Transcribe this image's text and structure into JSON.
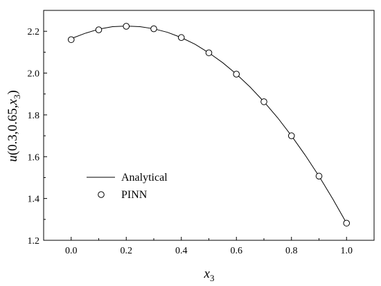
{
  "chart_data": {
    "type": "line",
    "title": "",
    "xlabel": {
      "base": "x",
      "sub": "3"
    },
    "ylabel": {
      "pre": "u",
      "mid": "(0.3,0.65,",
      "var": "x",
      "sub": "3",
      "post": ")"
    },
    "xlim": [
      -0.1,
      1.1
    ],
    "ylim": [
      1.2,
      2.3
    ],
    "xticks": [
      "0.0",
      "0.2",
      "0.4",
      "0.6",
      "0.8",
      "1.0"
    ],
    "yticks": [
      "1.2",
      "1.4",
      "1.6",
      "1.8",
      "2.0",
      "2.2"
    ],
    "grid": false,
    "legend_position": "lower-left",
    "series": [
      {
        "name": "Analytical",
        "style": "line",
        "color": "#000000",
        "x": [
          0.0,
          0.05,
          0.1,
          0.15,
          0.2,
          0.25,
          0.3,
          0.35,
          0.4,
          0.45,
          0.5,
          0.55,
          0.6,
          0.65,
          0.7,
          0.75,
          0.8,
          0.85,
          0.9,
          0.95,
          1.0
        ],
        "y": [
          2.165,
          2.19,
          2.21,
          2.222,
          2.225,
          2.222,
          2.212,
          2.195,
          2.17,
          2.138,
          2.097,
          2.05,
          1.995,
          1.933,
          1.863,
          1.786,
          1.7,
          1.607,
          1.507,
          1.398,
          1.282
        ]
      },
      {
        "name": "PINN",
        "style": "markers",
        "marker": "circle-open",
        "color": "#000000",
        "x": [
          0.0,
          0.1,
          0.2,
          0.3,
          0.4,
          0.5,
          0.6,
          0.7,
          0.8,
          0.9,
          1.0
        ],
        "y": [
          2.16,
          2.207,
          2.224,
          2.212,
          2.17,
          2.097,
          1.995,
          1.863,
          1.7,
          1.507,
          1.282
        ]
      }
    ]
  }
}
